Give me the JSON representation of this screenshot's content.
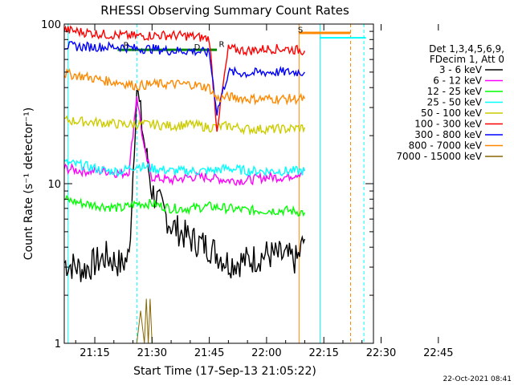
{
  "chart_data": {
    "type": "line",
    "title": "RHESSI Observing Summary Count Rates",
    "xlabel": "Start Time (17-Sep-13 21:05:22)",
    "ylabel": "Count Rate (s⁻¹ detector⁻¹)",
    "yscale": "log",
    "ylim": [
      1,
      100
    ],
    "xlim_minutes_after_21:00": [
      7,
      88
    ],
    "x_ticks": [
      "21:15",
      "21:30",
      "21:45",
      "22:00",
      "22:15",
      "22:30",
      "22:45"
    ],
    "y_ticks": [
      "1",
      "10",
      "100"
    ],
    "legend_header": [
      "Det 1,3,4,5,6,9,",
      "FDecim 1, Att 0"
    ],
    "legend_position": "right",
    "series": [
      {
        "name": "3 - 6 keV",
        "color": "#000000",
        "x": [
          7,
          12,
          18,
          22,
          24,
          26,
          28,
          30,
          35,
          40,
          45,
          50,
          55,
          60,
          64,
          68,
          70
        ],
        "y": [
          3.2,
          2.9,
          3.5,
          3.1,
          3.5,
          40,
          18,
          9,
          5.5,
          4.5,
          4,
          3.2,
          3.3,
          3.6,
          3.5,
          3.3,
          4.5
        ]
      },
      {
        "name": "6 - 12 keV",
        "color": "#ff00ff",
        "x": [
          7,
          12,
          18,
          22,
          24,
          26,
          28,
          30,
          35,
          40,
          45,
          50,
          55,
          60,
          65,
          70
        ],
        "y": [
          12.5,
          12,
          12,
          11.5,
          12,
          36,
          16,
          11,
          10.5,
          11,
          11,
          10.5,
          10.5,
          11,
          11,
          12
        ]
      },
      {
        "name": "12 - 25 keV",
        "color": "#00ff00",
        "x": [
          7,
          12,
          18,
          22,
          26,
          30,
          35,
          40,
          45,
          50,
          55,
          60,
          65,
          70
        ],
        "y": [
          8,
          7.5,
          7.2,
          7,
          7.5,
          7.5,
          7,
          7,
          7.2,
          7,
          6.8,
          6.8,
          6.8,
          6.6
        ]
      },
      {
        "name": "25 - 50 keV",
        "color": "#00ffff",
        "x": [
          7,
          12,
          18,
          22,
          26,
          30,
          35,
          40,
          45,
          50,
          55,
          60,
          65,
          70
        ],
        "y": [
          13.5,
          13,
          12,
          12,
          13,
          12.5,
          12,
          12,
          12,
          12.5,
          12,
          12,
          12,
          12
        ]
      },
      {
        "name": "50 - 100 keV",
        "color": "#cccc00",
        "x": [
          7,
          12,
          18,
          22,
          26,
          30,
          35,
          40,
          45,
          50,
          55,
          60,
          65,
          70
        ],
        "y": [
          25,
          24.5,
          24,
          23.5,
          23.5,
          23.5,
          23,
          23.5,
          22.5,
          23,
          22,
          22,
          22,
          22.5
        ]
      },
      {
        "name": "100 - 300 keV",
        "color": "#ff0000",
        "x": [
          7,
          12,
          18,
          22,
          26,
          30,
          35,
          40,
          45,
          47,
          50,
          55,
          60,
          65,
          70
        ],
        "y": [
          92,
          89,
          86,
          85,
          84,
          85,
          85,
          84,
          81,
          22,
          70,
          68,
          70,
          70,
          68
        ]
      },
      {
        "name": "300 - 800 keV",
        "color": "#0000ff",
        "x": [
          7,
          12,
          18,
          22,
          26,
          30,
          35,
          40,
          45,
          47,
          50,
          55,
          60,
          65,
          70
        ],
        "y": [
          73,
          72,
          72,
          72,
          70,
          70,
          68,
          68,
          66,
          28,
          50,
          49,
          50,
          50,
          50
        ]
      },
      {
        "name": "800 - 7000 keV",
        "color": "#ff8800",
        "x": [
          7,
          12,
          18,
          22,
          26,
          30,
          35,
          40,
          45,
          47,
          50,
          55,
          60,
          65,
          70
        ],
        "y": [
          49,
          47,
          44,
          43,
          41,
          42,
          42,
          42,
          40,
          34,
          35,
          34,
          34,
          34,
          34
        ]
      },
      {
        "name": "7000 - 15000 keV",
        "color": "#886600",
        "x": [
          26,
          27,
          28,
          28.5,
          29,
          29.5,
          30
        ],
        "y": [
          1,
          1.6,
          1,
          1.9,
          1,
          1.9,
          1
        ]
      }
    ],
    "markers": [
      {
        "label": "S",
        "color": "#ff8800"
      },
      {
        "label": "R",
        "color": "#008800"
      },
      {
        "label": "R",
        "color": "#008800"
      },
      {
        "label": "D",
        "color": "#008800"
      }
    ],
    "footer_date": "22-Oct-2021 08:41"
  }
}
